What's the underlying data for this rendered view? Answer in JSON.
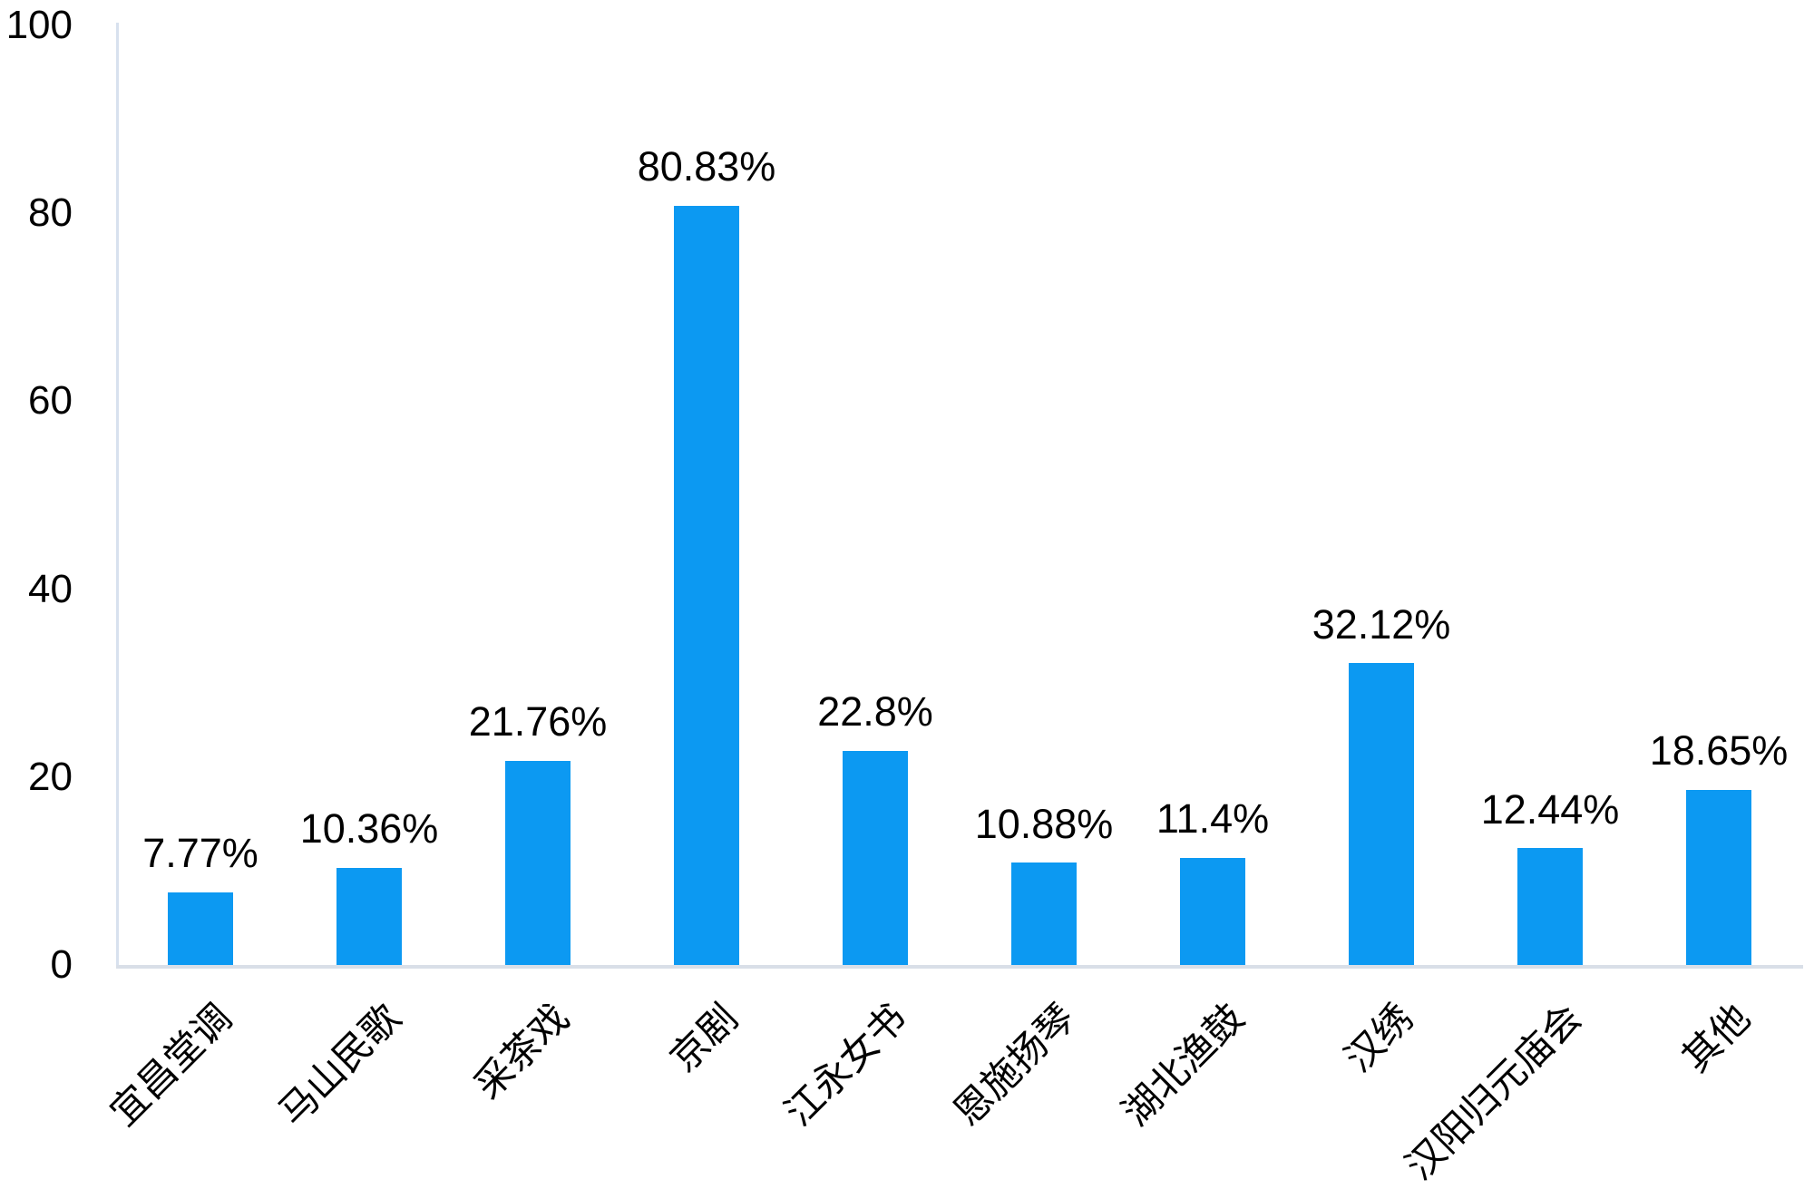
{
  "chart_data": {
    "type": "bar",
    "title": "",
    "xlabel": "",
    "ylabel": "",
    "categories": [
      "宜昌堂调",
      "马山民歌",
      "采茶戏",
      "京剧",
      "江永女书",
      "恩施扬琴",
      "湖北渔鼓",
      "汉绣",
      "汉阳归元庙会",
      "其他"
    ],
    "values": [
      7.77,
      10.36,
      21.76,
      80.83,
      22.8,
      10.88,
      11.4,
      32.12,
      12.44,
      18.65
    ],
    "data_labels": [
      "7.77%",
      "10.36%",
      "21.76%",
      "80.83%",
      "22.8%",
      "10.88%",
      "11.4%",
      "32.12%",
      "12.44%",
      "18.65%"
    ],
    "ylim": [
      0,
      100
    ],
    "yticks": [
      "0",
      "20",
      "40",
      "60",
      "80",
      "100"
    ],
    "grid": false,
    "legend_position": "none",
    "x_label_rotation_deg": -45,
    "colors": {
      "bar": "#0C99F2",
      "y_axis_line": "#D8E1EE",
      "x_axis_line": "#D9DFE8",
      "text": "#000000",
      "background": "#FFFFFF"
    }
  }
}
